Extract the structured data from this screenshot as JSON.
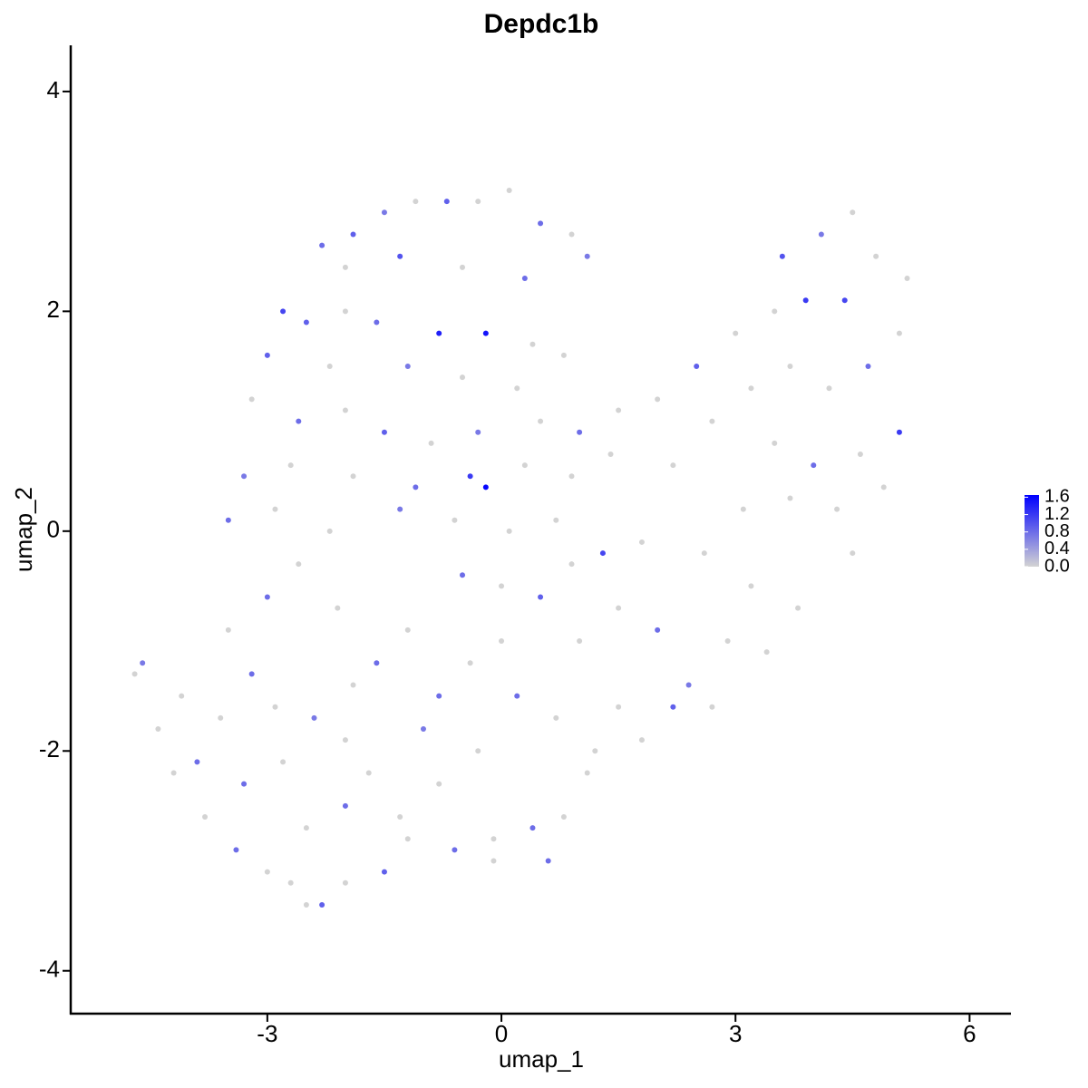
{
  "chart_data": {
    "type": "scatter",
    "title": "Depdc1b",
    "x_label": "umap_1",
    "y_label": "umap_2",
    "xlim": [
      -5.52,
      6.53
    ],
    "ylim": [
      -4.39,
      4.42
    ],
    "xticks": [
      -3,
      0,
      3,
      6
    ],
    "yticks": [
      -4,
      -2,
      0,
      2,
      4
    ],
    "color_low": "#d3d3d3",
    "color_high": "#0000ff",
    "clim": [
      0,
      1.65
    ],
    "colorbar_ticks": [
      {
        "value": 0,
        "label": "0.0"
      },
      {
        "value": 0.4,
        "label": "0.4"
      },
      {
        "value": 0.8,
        "label": "0.8"
      },
      {
        "value": 1.2,
        "label": "1.2"
      },
      {
        "value": 1.6,
        "label": "1.6"
      }
    ],
    "x": [
      -2.3,
      -1.9,
      -1.5,
      -1.1,
      -0.7,
      -0.3,
      0.1,
      0.5,
      0.9,
      1.1,
      -2.0,
      -1.3,
      -0.5,
      0.3,
      -2.8,
      -2.5,
      -2.0,
      -1.6,
      -0.8,
      -0.2,
      0.4,
      0.8,
      -3.0,
      -2.2,
      -1.2,
      -0.5,
      0.2,
      -3.2,
      -2.6,
      -2.0,
      -1.5,
      -0.9,
      -0.3,
      0.5,
      1.0,
      1.5,
      2.0,
      -3.3,
      -2.7,
      -1.9,
      -1.1,
      -0.4,
      -0.2,
      0.3,
      0.9,
      1.4,
      2.2,
      -3.5,
      -2.9,
      -2.2,
      -1.3,
      -0.6,
      0.1,
      0.7,
      1.3,
      1.8,
      2.5,
      3.0,
      3.5,
      3.9,
      4.4,
      4.5,
      4.8,
      5.2,
      5.1,
      4.7,
      4.2,
      3.7,
      3.2,
      2.7,
      3.5,
      4.0,
      4.6,
      5.1,
      4.9,
      4.3,
      3.7,
      3.1,
      2.6,
      3.2,
      3.8,
      4.5,
      2.9,
      3.4,
      2.4,
      2.7,
      3.6,
      4.1,
      -4.7,
      -4.6,
      -4.4,
      -4.1,
      -3.9,
      -3.6,
      -4.2,
      -3.8,
      -3.4,
      -3.0,
      -2.7,
      -2.5,
      -2.3,
      -2.0,
      -1.5,
      -1.2,
      -3.3,
      -2.8,
      -2.5,
      -2.0,
      -1.7,
      -3.2,
      -2.9,
      -2.4,
      -2.0,
      -3.5,
      -3.0,
      -2.6,
      -2.1,
      -1.6,
      -1.2,
      -0.8,
      -0.4,
      0.0,
      0.5,
      1.0,
      1.5,
      2.0,
      2.2,
      1.8,
      1.2,
      0.7,
      0.2,
      -0.3,
      -0.8,
      -1.3,
      -0.6,
      -0.1,
      0.4,
      0.8,
      1.1,
      1.5,
      -0.1,
      0.6,
      -1.0,
      -1.9,
      -0.5,
      0.0,
      0.9
    ],
    "y": [
      2.6,
      2.7,
      2.9,
      3.0,
      3.0,
      3.0,
      3.1,
      2.8,
      2.7,
      2.5,
      2.4,
      2.5,
      2.4,
      2.3,
      2.0,
      1.9,
      2.0,
      1.9,
      1.8,
      1.8,
      1.7,
      1.6,
      1.6,
      1.5,
      1.5,
      1.4,
      1.3,
      1.2,
      1.0,
      1.1,
      0.9,
      0.8,
      0.9,
      1.0,
      0.9,
      1.1,
      1.2,
      0.5,
      0.6,
      0.5,
      0.4,
      0.5,
      0.4,
      0.6,
      0.5,
      0.7,
      0.6,
      0.1,
      0.2,
      0.0,
      0.2,
      0.1,
      0.0,
      0.1,
      -0.2,
      -0.1,
      1.5,
      1.8,
      2.0,
      2.1,
      2.1,
      2.9,
      2.5,
      2.3,
      1.8,
      1.5,
      1.3,
      1.5,
      1.3,
      1.0,
      0.8,
      0.6,
      0.7,
      0.9,
      0.4,
      0.2,
      0.3,
      0.2,
      -0.2,
      -0.5,
      -0.7,
      -0.2,
      -1.0,
      -1.1,
      -1.4,
      -1.6,
      2.5,
      2.7,
      -1.3,
      -1.2,
      -1.8,
      -1.5,
      -2.1,
      -1.7,
      -2.2,
      -2.6,
      -2.9,
      -3.1,
      -3.2,
      -3.4,
      -3.4,
      -3.2,
      -3.1,
      -2.8,
      -2.3,
      -2.1,
      -2.7,
      -2.5,
      -2.2,
      -1.3,
      -1.6,
      -1.7,
      -1.9,
      -0.9,
      -0.6,
      -0.3,
      -0.7,
      -1.2,
      -0.9,
      -1.5,
      -1.2,
      -1.0,
      -0.6,
      -1.0,
      -0.7,
      -0.9,
      -1.6,
      -1.9,
      -2.0,
      -1.7,
      -1.5,
      -2.0,
      -2.3,
      -2.6,
      -2.9,
      -2.8,
      -2.7,
      -2.6,
      -2.2,
      -1.6,
      -3.0,
      -3.0,
      -1.8,
      -1.4,
      -0.4,
      -0.5,
      -0.3
    ],
    "values": [
      0.8,
      0.9,
      0.7,
      0,
      0.9,
      0,
      0,
      0.8,
      0,
      0.7,
      0,
      1.0,
      0,
      0.8,
      1.1,
      0.9,
      0,
      0.8,
      1.4,
      1.5,
      0,
      0,
      0.9,
      0,
      0.7,
      0,
      0,
      0,
      0.8,
      0,
      0.9,
      0,
      0.7,
      0,
      0.8,
      0,
      0,
      0.7,
      0,
      0,
      0.8,
      1.2,
      1.6,
      0,
      0,
      0,
      0,
      0.8,
      0,
      0,
      0.7,
      0,
      0,
      0,
      1.1,
      0,
      0.9,
      0,
      0,
      1.2,
      1.1,
      0,
      0,
      0,
      0,
      0.8,
      0,
      0,
      0,
      0,
      0,
      0.8,
      0,
      1.2,
      0,
      0,
      0,
      0,
      0,
      0,
      0,
      0,
      0,
      0,
      0.7,
      0,
      1.0,
      0.7,
      0,
      0.7,
      0,
      0,
      0.8,
      0,
      0,
      0,
      0.8,
      0,
      0,
      0,
      0.9,
      0,
      0.9,
      0,
      0.8,
      0,
      0,
      0.8,
      0,
      0.8,
      0,
      0.7,
      0,
      0,
      0.8,
      0,
      0,
      0.8,
      0,
      0.8,
      0,
      0,
      0.9,
      0,
      0,
      0.8,
      0.9,
      0,
      0,
      0,
      0.8,
      0,
      0,
      0,
      0.8,
      0,
      0.8,
      0,
      0,
      0,
      0,
      0.8,
      0.7,
      0,
      0.8,
      0,
      0
    ]
  }
}
